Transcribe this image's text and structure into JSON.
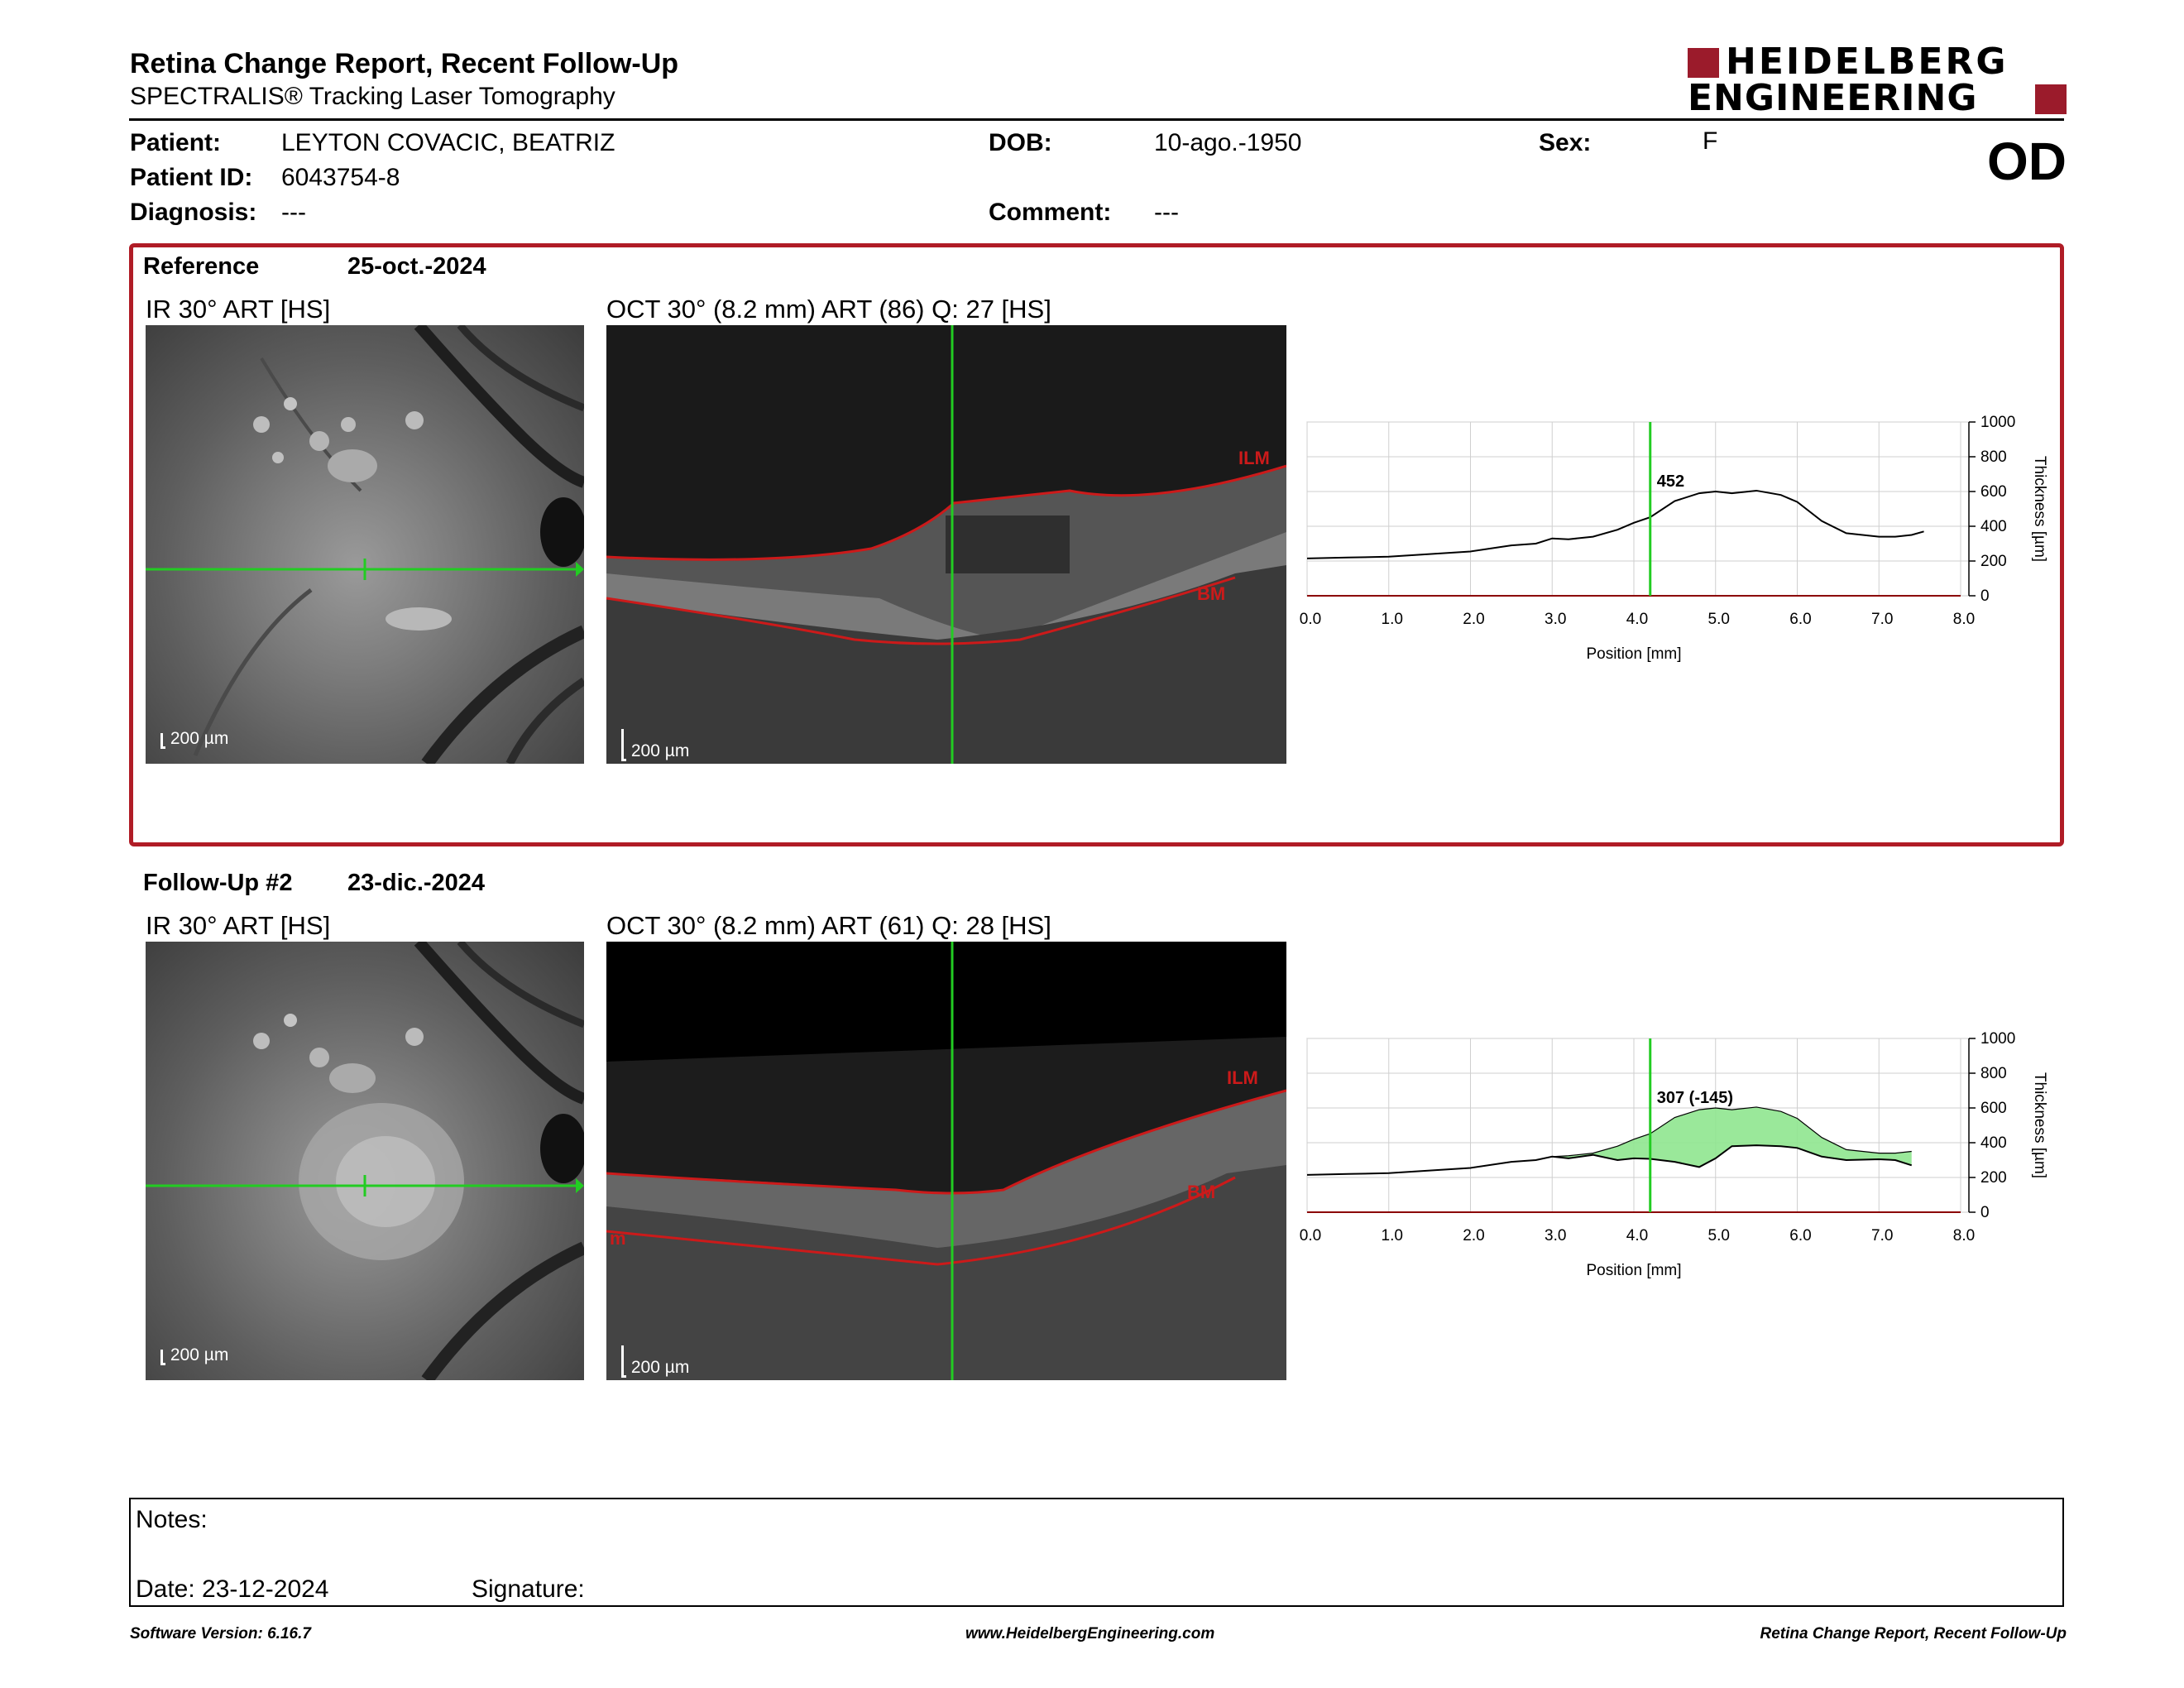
{
  "header": {
    "title": "Retina Change Report, Recent Follow-Up",
    "subtitle": "SPECTRALIS® Tracking Laser Tomography",
    "logo_line1": "HEIDELBERG",
    "logo_line2": "ENGINEERING",
    "eye": "OD"
  },
  "patient": {
    "patient_label": "Patient:",
    "patient_value": "LEYTON COVACIC, BEATRIZ",
    "id_label": "Patient ID:",
    "id_value": "6043754-8",
    "diagnosis_label": "Diagnosis:",
    "diagnosis_value": "---",
    "dob_label": "DOB:",
    "dob_value": "10-ago.-1950",
    "comment_label": "Comment:",
    "comment_value": "---",
    "sex_label": "Sex:",
    "sex_value": "F"
  },
  "reference": {
    "label": "Reference",
    "date": "25-oct.-2024",
    "ir_caption": "IR 30° ART [HS]",
    "oct_caption": "OCT 30° (8.2 mm) ART (86) Q: 27 [HS]",
    "ir_scale": "200 µm",
    "oct_scale": "200 µm",
    "ilm_label": "ILM",
    "bm_label": "BM"
  },
  "followup": {
    "label": "Follow-Up #2",
    "date": "23-dic.-2024",
    "ir_caption": "IR 30° ART [HS]",
    "oct_caption": "OCT 30° (8.2 mm) ART (61) Q: 28 [HS]",
    "ir_scale": "200 µm",
    "oct_scale": "200 µm",
    "ilm_label": "ILM",
    "bm_label": "BM",
    "edge_label": "m"
  },
  "chart_data": [
    {
      "type": "line",
      "xlabel": "Position [mm]",
      "ylabel": "Thickness [µm]",
      "xlim": [
        0,
        8
      ],
      "ylim": [
        0,
        1000
      ],
      "x_ticks": [
        "0.0",
        "1.0",
        "2.0",
        "3.0",
        "4.0",
        "5.0",
        "6.0",
        "7.0",
        "8.0"
      ],
      "y_ticks": [
        "0",
        "200",
        "400",
        "600",
        "800",
        "1000"
      ],
      "cursor_x": 4.2,
      "cursor_label": "452",
      "series": [
        {
          "x": [
            0,
            0.5,
            1,
            1.5,
            2,
            2.5,
            2.8,
            3.0,
            3.2,
            3.5,
            3.8,
            4.0,
            4.2,
            4.5,
            4.8,
            5.0,
            5.2,
            5.5,
            5.8,
            6.0,
            6.3,
            6.6,
            7.0,
            7.2,
            7.4,
            7.55
          ],
          "y": [
            215,
            220,
            225,
            240,
            255,
            290,
            300,
            330,
            325,
            340,
            380,
            420,
            452,
            545,
            590,
            600,
            590,
            605,
            580,
            540,
            430,
            360,
            340,
            340,
            350,
            370
          ]
        }
      ],
      "grid": true
    },
    {
      "type": "area",
      "xlabel": "Position [mm]",
      "ylabel": "Thickness [µm]",
      "xlim": [
        0,
        8
      ],
      "ylim": [
        0,
        1000
      ],
      "x_ticks": [
        "0.0",
        "1.0",
        "2.0",
        "3.0",
        "4.0",
        "5.0",
        "6.0",
        "7.0",
        "8.0"
      ],
      "y_ticks": [
        "0",
        "200",
        "400",
        "600",
        "800",
        "1000"
      ],
      "cursor_x": 4.2,
      "cursor_label": "307 (-145)",
      "series": [
        {
          "x": [
            0,
            0.5,
            1,
            1.5,
            2,
            2.5,
            2.8,
            3.0,
            3.2,
            3.5,
            3.8,
            4.0,
            4.2,
            4.5,
            4.8,
            5.0,
            5.2,
            5.5,
            5.8,
            6.0,
            6.3,
            6.6,
            7.0,
            7.2,
            7.4
          ],
          "y": [
            215,
            220,
            225,
            240,
            255,
            290,
            300,
            320,
            310,
            330,
            300,
            310,
            307,
            290,
            260,
            310,
            380,
            385,
            380,
            370,
            320,
            300,
            305,
            300,
            270
          ]
        },
        {
          "x": [
            3.0,
            3.2,
            3.5,
            3.8,
            4.0,
            4.2,
            4.5,
            4.8,
            5.0,
            5.2,
            5.5,
            5.8,
            6.0,
            6.3,
            6.6,
            7.0,
            7.2,
            7.4
          ],
          "y": [
            320,
            325,
            340,
            380,
            420,
            452,
            545,
            590,
            600,
            590,
            605,
            580,
            540,
            430,
            360,
            340,
            340,
            350
          ]
        }
      ],
      "fill_color": "#8fe68f",
      "grid": true
    }
  ],
  "notes": {
    "notes_label": "Notes:",
    "date_label": "Date: 23-12-2024",
    "signature_label": "Signature:"
  },
  "footer": {
    "software": "Software Version: 6.16.7",
    "website": "www.HeidelbergEngineering.com",
    "report": "Retina Change Report, Recent Follow-Up"
  },
  "colors": {
    "brand_red": "#9b1b2b",
    "box_red": "#b01c26",
    "cursor_green": "#22cc22",
    "segment_red": "#cc1a1a"
  }
}
